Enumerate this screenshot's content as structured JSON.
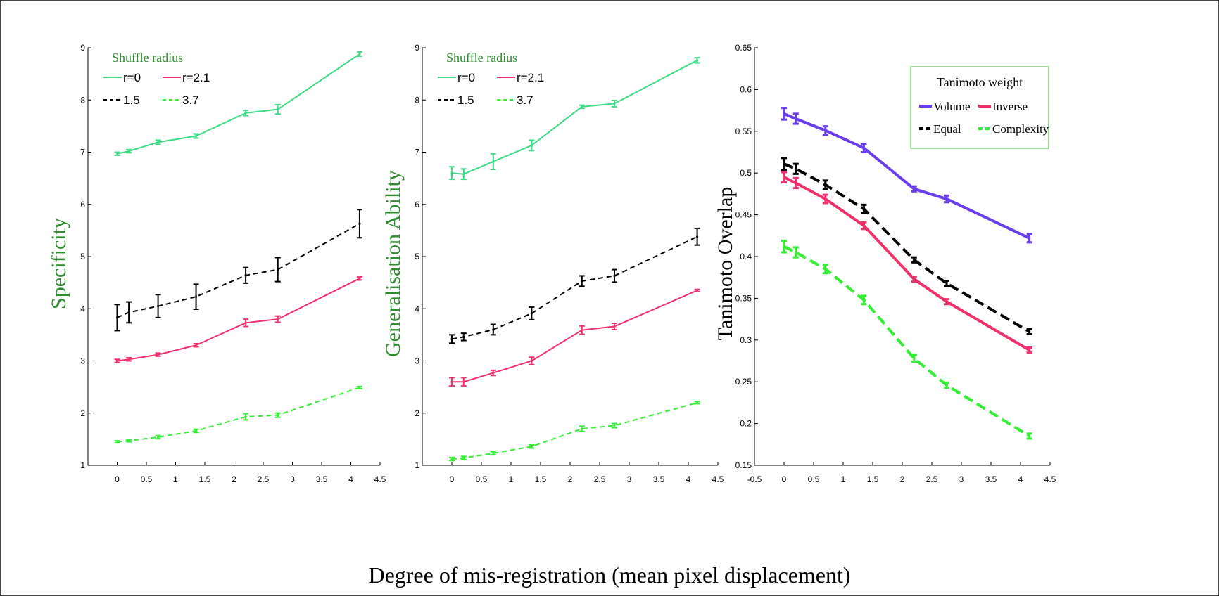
{
  "figure": {
    "xlabel": "Degree of mis-registration (mean pixel displacement)"
  },
  "chart_data": [
    {
      "type": "line",
      "ylabel": "Specificity",
      "ylim": [
        1,
        9
      ],
      "xlim": [
        -0.5,
        4.5
      ],
      "xticks": [
        "0",
        "0.5",
        "1",
        "1.5",
        "2",
        "2.5",
        "3",
        "3.5",
        "4",
        "4.5"
      ],
      "yticks": [
        "1",
        "2",
        "3",
        "4",
        "5",
        "6",
        "7",
        "8",
        "9"
      ],
      "label_color": "#2e8b2e",
      "legend": {
        "title": "Shuffle radius",
        "placement": "top-left",
        "title_color": "#2e8b2e"
      },
      "x": [
        0,
        0.2,
        0.7,
        1.35,
        2.2,
        2.75,
        4.15
      ],
      "series": [
        {
          "name": "r=0",
          "color": "#3ddc84",
          "dash": "solid",
          "values": [
            6.97,
            7.02,
            7.19,
            7.31,
            7.75,
            7.82,
            8.88
          ],
          "errors": [
            0.03,
            0.03,
            0.04,
            0.04,
            0.05,
            0.09,
            0.04
          ]
        },
        {
          "name": "r=2.1",
          "color": "#f0306a",
          "dash": "solid",
          "values": [
            3.0,
            3.03,
            3.12,
            3.3,
            3.73,
            3.8,
            4.58
          ],
          "errors": [
            0.03,
            0.03,
            0.03,
            0.03,
            0.07,
            0.06,
            0.03
          ]
        },
        {
          "name": "1.5",
          "color": "#000000",
          "dash": "dashed",
          "values": [
            3.83,
            3.93,
            4.05,
            4.23,
            4.64,
            4.75,
            5.63
          ],
          "errors": [
            0.25,
            0.2,
            0.22,
            0.24,
            0.15,
            0.23,
            0.27
          ]
        },
        {
          "name": "3.7",
          "color": "#33ee33",
          "dash": "dashed",
          "values": [
            1.45,
            1.47,
            1.54,
            1.66,
            1.93,
            1.96,
            2.49
          ],
          "errors": [
            0.02,
            0.02,
            0.03,
            0.03,
            0.06,
            0.04,
            0.02
          ]
        }
      ]
    },
    {
      "type": "line",
      "ylabel": "Generalisation Ability",
      "ylim": [
        1,
        9
      ],
      "xlim": [
        -0.5,
        4.5
      ],
      "xticks": [
        "0",
        "0.5",
        "1",
        "1.5",
        "2",
        "2.5",
        "3",
        "3.5",
        "4",
        "4.5"
      ],
      "yticks": [
        "1",
        "2",
        "3",
        "4",
        "5",
        "6",
        "7",
        "8",
        "9"
      ],
      "label_color": "#2e8b2e",
      "legend": {
        "title": "Shuffle radius",
        "placement": "top-left",
        "title_color": "#2e8b2e"
      },
      "x": [
        0,
        0.2,
        0.7,
        1.35,
        2.2,
        2.75,
        4.15
      ],
      "series": [
        {
          "name": "r=0",
          "color": "#3ddc84",
          "dash": "solid",
          "values": [
            6.6,
            6.58,
            6.82,
            7.13,
            7.87,
            7.93,
            8.76
          ],
          "errors": [
            0.12,
            0.1,
            0.15,
            0.1,
            0.03,
            0.06,
            0.05
          ]
        },
        {
          "name": "r=2.1",
          "color": "#f0306a",
          "dash": "solid",
          "values": [
            2.6,
            2.6,
            2.77,
            3.0,
            3.59,
            3.66,
            4.35
          ],
          "errors": [
            0.08,
            0.08,
            0.05,
            0.07,
            0.08,
            0.06,
            0.02
          ]
        },
        {
          "name": "1.5",
          "color": "#000000",
          "dash": "dashed",
          "values": [
            3.42,
            3.46,
            3.6,
            3.91,
            4.53,
            4.63,
            5.38
          ],
          "errors": [
            0.08,
            0.07,
            0.1,
            0.12,
            0.1,
            0.12,
            0.16
          ]
        },
        {
          "name": "3.7",
          "color": "#33ee33",
          "dash": "dashed",
          "values": [
            1.12,
            1.14,
            1.23,
            1.36,
            1.7,
            1.76,
            2.2
          ],
          "errors": [
            0.03,
            0.03,
            0.03,
            0.03,
            0.05,
            0.04,
            0.02
          ]
        }
      ]
    },
    {
      "type": "line",
      "ylabel": "Tanimoto Overlap",
      "ylim": [
        0.15,
        0.65
      ],
      "xlim": [
        -0.5,
        4.5
      ],
      "xticks": [
        "-0.5",
        "0",
        "0.5",
        "1",
        "1.5",
        "2",
        "2.5",
        "3",
        "3.5",
        "4",
        "4.5"
      ],
      "yticks": [
        "0.15",
        "0.2",
        "0.25",
        "0.3",
        "0.35",
        "0.4",
        "0.45",
        "0.5",
        "0.55",
        "0.6",
        "0.65"
      ],
      "label_color": "#000000",
      "legend": {
        "title": "Tanimoto weight",
        "placement": "top-right",
        "title_color": "#000000",
        "border_color": "#7ed07e"
      },
      "x": [
        0,
        0.2,
        0.7,
        1.35,
        2.2,
        2.75,
        4.15
      ],
      "series": [
        {
          "name": "Volume",
          "color": "#6a3dee",
          "dash": "solid",
          "values": [
            0.571,
            0.565,
            0.551,
            0.53,
            0.481,
            0.469,
            0.422
          ],
          "errors": [
            0.007,
            0.006,
            0.005,
            0.005,
            0.003,
            0.004,
            0.005
          ]
        },
        {
          "name": "Inverse",
          "color": "#f0306a",
          "dash": "solid",
          "values": [
            0.495,
            0.488,
            0.469,
            0.437,
            0.373,
            0.346,
            0.288
          ],
          "errors": [
            0.006,
            0.006,
            0.005,
            0.004,
            0.003,
            0.003,
            0.003
          ]
        },
        {
          "name": "Equal",
          "color": "#000000",
          "dash": "dashed",
          "values": [
            0.511,
            0.505,
            0.486,
            0.457,
            0.396,
            0.368,
            0.31
          ],
          "errors": [
            0.007,
            0.006,
            0.005,
            0.005,
            0.003,
            0.003,
            0.003
          ]
        },
        {
          "name": "Complexity",
          "color": "#33ee33",
          "dash": "dashed",
          "values": [
            0.412,
            0.405,
            0.385,
            0.348,
            0.278,
            0.246,
            0.185
          ],
          "errors": [
            0.007,
            0.006,
            0.005,
            0.005,
            0.004,
            0.003,
            0.003
          ]
        }
      ]
    }
  ]
}
